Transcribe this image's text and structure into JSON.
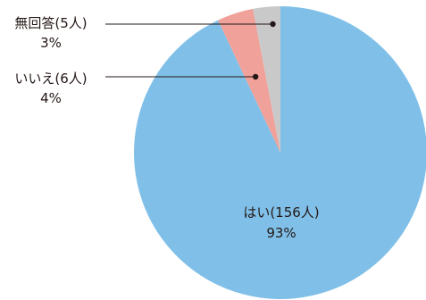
{
  "chart_data": {
    "type": "pie",
    "slices": [
      {
        "label": "はい(156人)",
        "percent_label": "93%",
        "count": 156,
        "value": 93,
        "color": "#80c0e8"
      },
      {
        "label": "いいえ(6人)",
        "percent_label": "4%",
        "count": 6,
        "value": 4,
        "color": "#f0a19a"
      },
      {
        "label": "無回答(5人)",
        "percent_label": "3%",
        "count": 5,
        "value": 3,
        "color": "#c9c9c9"
      }
    ],
    "start": "12 o'clock",
    "direction": "clockwise",
    "title": "",
    "legend": "none"
  }
}
